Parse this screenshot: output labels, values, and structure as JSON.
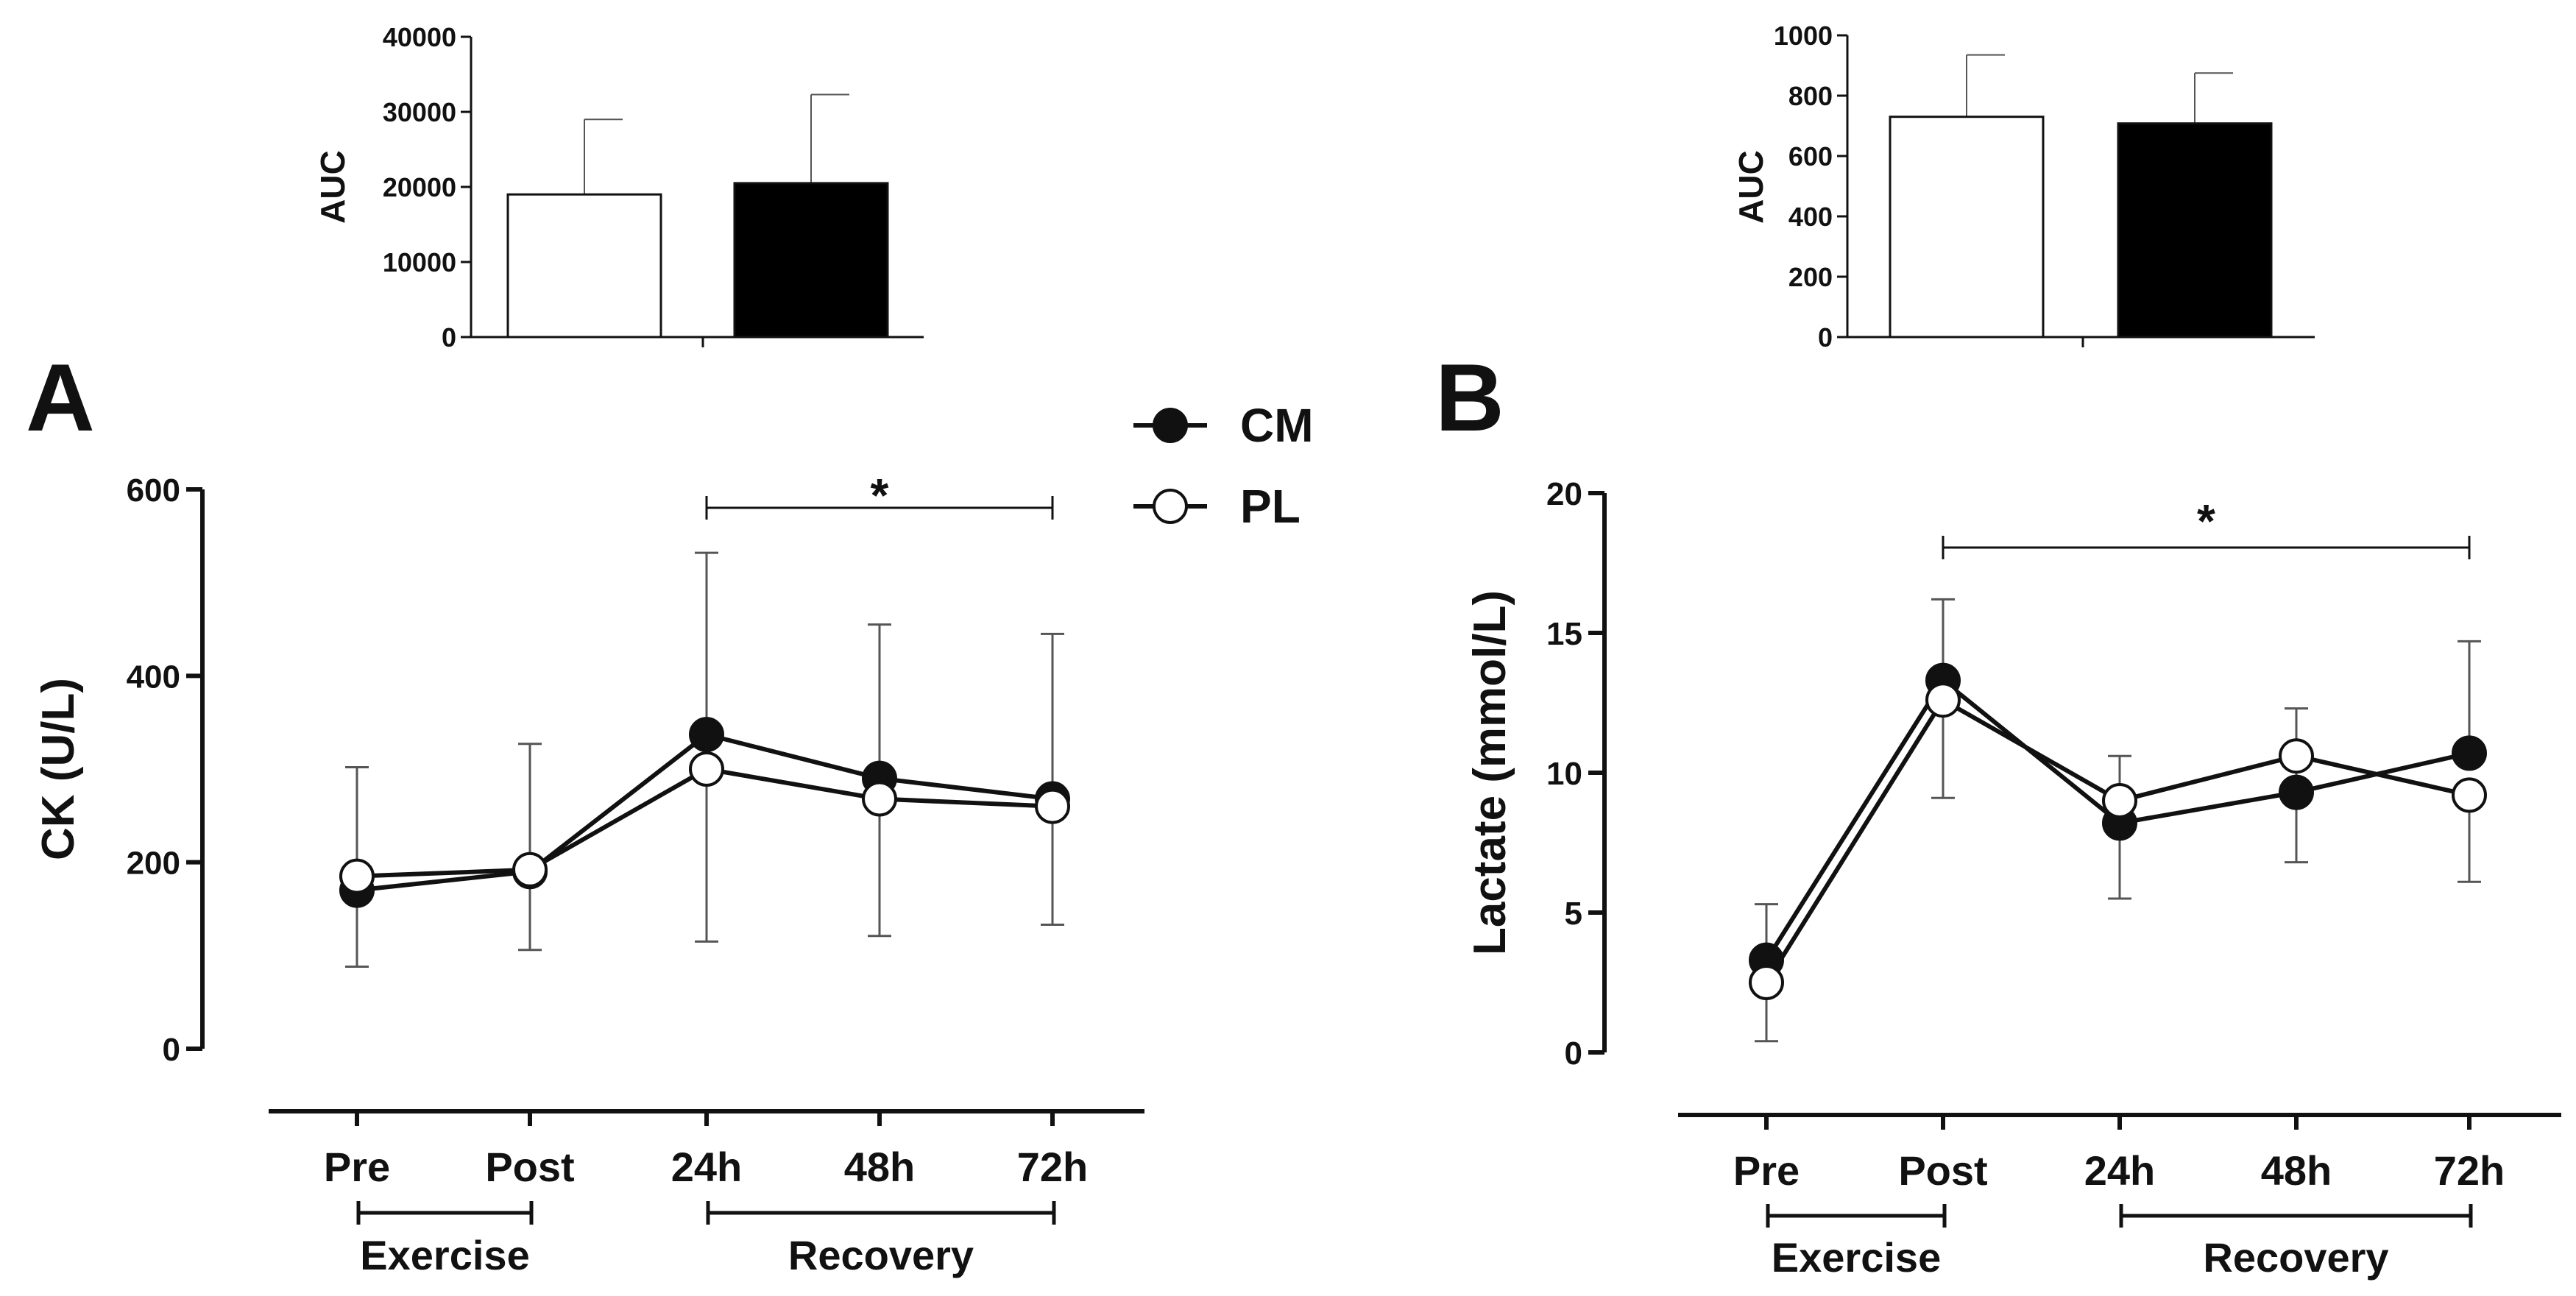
{
  "chart_data": [
    {
      "id": "A",
      "type": "line",
      "panel_label": "A",
      "ylabel": "CK (U/L)",
      "ylim": [
        0,
        600
      ],
      "yticks": [
        "0",
        "200",
        "400",
        "600"
      ],
      "categories": [
        "Pre",
        "Post",
        "24h",
        "48h",
        "72h"
      ],
      "series": [
        {
          "name": "CM",
          "marker": "filled",
          "values": [
            170,
            190,
            337,
            290,
            268
          ],
          "sd_upper": [
            0,
            0,
            0,
            0,
            0
          ]
        },
        {
          "name": "PL",
          "marker": "open",
          "values": [
            185,
            192,
            300,
            268,
            260
          ],
          "sd_upper": [
            302,
            327,
            532,
            455,
            445
          ],
          "sd_lower": [
            88,
            106,
            115,
            121,
            133
          ]
        }
      ],
      "groups": [
        {
          "label": "Exercise",
          "from": 0,
          "to": 1
        },
        {
          "label": "Recovery",
          "from": 2,
          "to": 4
        }
      ],
      "significance": {
        "symbol": "*",
        "from": 2,
        "to": 4
      },
      "inset": {
        "type": "bar",
        "ylabel": "AUC",
        "ylim": [
          0,
          40000
        ],
        "yticks": [
          "0",
          "10000",
          "20000",
          "30000",
          "40000"
        ],
        "categories": [
          "PL",
          "CM"
        ],
        "values": [
          19000,
          20500
        ],
        "error_upper": [
          29000,
          32300
        ],
        "fills": [
          "#ffffff",
          "#000000"
        ]
      }
    },
    {
      "id": "B",
      "type": "line",
      "panel_label": "B",
      "ylabel": "Lactate (mmol/L)",
      "ylim": [
        0,
        20
      ],
      "yticks": [
        "0",
        "5",
        "10",
        "15",
        "20"
      ],
      "categories": [
        "Pre",
        "Post",
        "24h",
        "48h",
        "72h"
      ],
      "series": [
        {
          "name": "CM",
          "marker": "filled",
          "values": [
            3.3,
            13.3,
            8.2,
            9.3,
            10.7
          ],
          "sd_upper": [
            5.3,
            16.2,
            0,
            0,
            14.7
          ]
        },
        {
          "name": "PL",
          "marker": "open",
          "values": [
            2.5,
            12.6,
            9.0,
            10.6,
            9.2
          ],
          "sd_upper": [
            0,
            0,
            10.6,
            12.3,
            0
          ],
          "sd_lower": [
            0.4,
            9.1,
            5.5,
            6.8,
            6.1
          ]
        }
      ],
      "groups": [
        {
          "label": "Exercise",
          "from": 0,
          "to": 1
        },
        {
          "label": "Recovery",
          "from": 2,
          "to": 4
        }
      ],
      "significance": {
        "symbol": "*",
        "from": 1,
        "to": 4
      },
      "inset": {
        "type": "bar",
        "ylabel": "AUC",
        "ylim": [
          0,
          1000
        ],
        "yticks": [
          "0",
          "200",
          "400",
          "600",
          "800",
          "1000"
        ],
        "categories": [
          "PL",
          "CM"
        ],
        "values": [
          730,
          708
        ],
        "error_upper": [
          935,
          875
        ],
        "fills": [
          "#ffffff",
          "#000000"
        ]
      }
    }
  ],
  "legend": [
    {
      "label": "CM",
      "marker": "filled"
    },
    {
      "label": "PL",
      "marker": "open"
    }
  ]
}
